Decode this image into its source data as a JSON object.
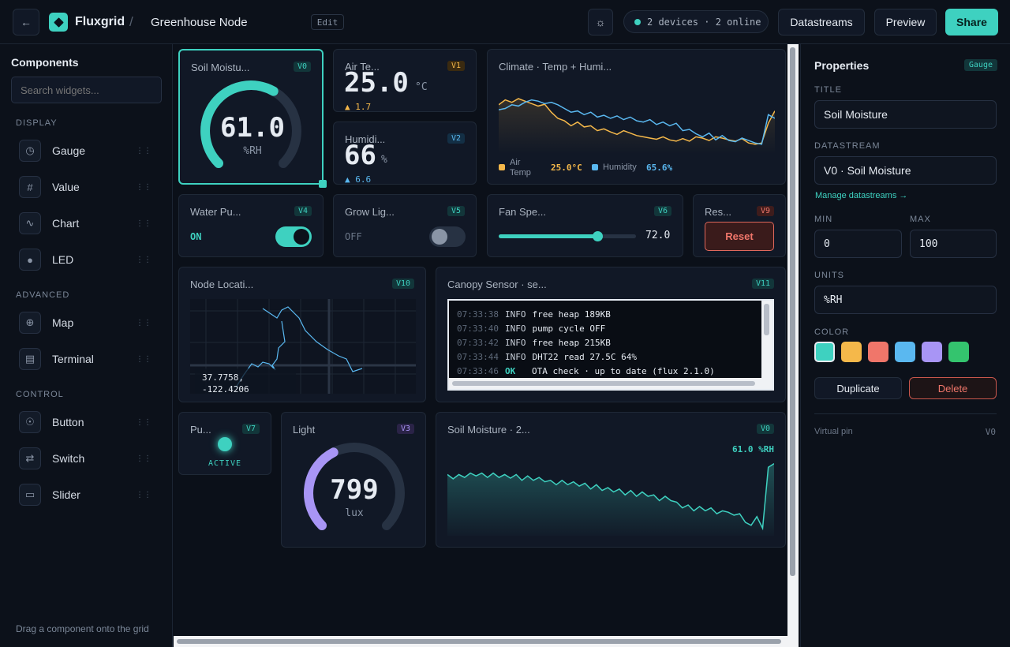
{
  "header": {
    "logo_name": "Fluxgrid",
    "separator": "/",
    "project_title": "Greenhouse Node",
    "edit_label": "Edit",
    "devices_status": "2 devices · 2 online",
    "datastreams_label": "Datastreams",
    "preview_label": "Preview",
    "share_label": "Share"
  },
  "sidebar": {
    "title": "Components",
    "search_placeholder": "Search widgets...",
    "sections": {
      "display": "DISPLAY",
      "advanced": "ADVANCED",
      "control": "CONTROL"
    },
    "items": {
      "gauge": "Gauge",
      "value": "Value",
      "chart": "Chart",
      "led": "LED",
      "map": "Map",
      "terminal": "Terminal",
      "button": "Button",
      "switch": "Switch",
      "slider": "Slider"
    },
    "footer": "Drag a component onto the grid"
  },
  "widgets": {
    "soil_gauge": {
      "title": "Soil Moistu...",
      "pin": "V0",
      "value": "61.0",
      "unit": "%RH",
      "fraction": 0.61
    },
    "air_temp": {
      "title": "Air Te...",
      "pin": "V1",
      "value": "25.0",
      "unit": "°C",
      "delta": "▲ 1.7"
    },
    "humidity": {
      "title": "Humidi...",
      "pin": "V2",
      "value": "66",
      "unit": "%",
      "delta": "▲ 6.6"
    },
    "climate": {
      "title": "Climate · Temp + Humi...",
      "legend_temp": "Air Temp",
      "legend_temp_value": "25.0°C",
      "legend_hum": "Humidity",
      "legend_hum_value": "65.6%"
    },
    "water_pump": {
      "title": "Water Pu...",
      "pin": "V4",
      "state": "ON"
    },
    "grow_light": {
      "title": "Grow Lig...",
      "pin": "V5",
      "state": "OFF"
    },
    "fan_speed": {
      "title": "Fan Spe...",
      "pin": "V6",
      "value": "72.0",
      "fraction": 0.72
    },
    "reset": {
      "title": "Res...",
      "pin": "V9",
      "button": "Reset"
    },
    "map": {
      "title": "Node Locati...",
      "pin": "V10",
      "coord_lat": "37.7758,",
      "coord_lon": "-122.4206"
    },
    "terminal": {
      "title": "Canopy Sensor · se...",
      "pin": "V11",
      "lines": [
        {
          "time": "07:33:38",
          "level": "INFO",
          "msg": "free heap 189KB"
        },
        {
          "time": "07:33:40",
          "level": "INFO",
          "msg": "pump cycle OFF"
        },
        {
          "time": "07:33:42",
          "level": "INFO",
          "msg": "free heap 215KB"
        },
        {
          "time": "07:33:44",
          "level": "INFO",
          "msg": "DHT22 read 27.5C 64%"
        },
        {
          "time": "07:33:46",
          "level": "OK",
          "msg": "OTA check · up to date (flux 2.1.0)"
        }
      ]
    },
    "pump_led": {
      "title": "Pu...",
      "pin": "V7",
      "state": "ACTIVE"
    },
    "light_gauge": {
      "title": "Light",
      "pin": "V3",
      "value": "799",
      "unit": "lux",
      "fraction": 0.4
    },
    "soil_chart": {
      "title": "Soil Moisture · 2...",
      "pin": "V0",
      "current": "61.0 %RH"
    }
  },
  "properties": {
    "title": "Properties",
    "badge": "Gauge",
    "title_label": "TITLE",
    "title_value": "Soil Moisture",
    "datastream_label": "DATASTREAM",
    "datastream_value": "V0 · Soil Moisture",
    "manage_link": "Manage datastreams →",
    "min_label": "MIN",
    "min_value": "0",
    "max_label": "MAX",
    "max_value": "100",
    "units_label": "UNITS",
    "units_value": "%RH",
    "color_label": "COLOR",
    "colors": [
      "#3ed1c0",
      "#f5b84a",
      "#f0766a",
      "#5ab8f0",
      "#a895f5",
      "#34c46e"
    ],
    "duplicate_label": "Duplicate",
    "delete_label": "Delete",
    "virtual_pin_label": "Virtual pin",
    "virtual_pin_value": "V0"
  },
  "chart_data": [
    {
      "type": "line",
      "title": "Climate · Temp + Humi...",
      "series": [
        {
          "name": "Air Temp",
          "values": [
            0.72,
            0.8,
            0.76,
            0.82,
            0.78,
            0.74,
            0.7,
            0.73,
            0.6,
            0.5,
            0.46,
            0.38,
            0.44,
            0.36,
            0.38,
            0.3,
            0.33,
            0.28,
            0.24,
            0.3,
            0.26,
            0.22,
            0.2,
            0.18,
            0.16,
            0.2,
            0.15,
            0.13,
            0.17,
            0.13,
            0.2,
            0.18,
            0.14,
            0.2,
            0.18,
            0.15,
            0.13,
            0.17,
            0.1,
            0.08,
            0.1,
            0.42,
            0.62
          ]
        },
        {
          "name": "Humidity",
          "values": [
            0.64,
            0.66,
            0.72,
            0.7,
            0.76,
            0.8,
            0.78,
            0.74,
            0.76,
            0.72,
            0.66,
            0.6,
            0.62,
            0.56,
            0.6,
            0.52,
            0.55,
            0.5,
            0.54,
            0.48,
            0.52,
            0.46,
            0.44,
            0.48,
            0.4,
            0.44,
            0.38,
            0.42,
            0.3,
            0.32,
            0.25,
            0.2,
            0.26,
            0.15,
            0.22,
            0.14,
            0.12,
            0.18,
            0.14,
            0.1,
            0.08,
            0.56,
            0.5
          ]
        }
      ]
    },
    {
      "type": "area",
      "title": "Soil Moisture · 2...",
      "series": [
        {
          "name": "Soil Moisture",
          "values": [
            0.8,
            0.74,
            0.8,
            0.76,
            0.82,
            0.78,
            0.82,
            0.76,
            0.82,
            0.76,
            0.8,
            0.75,
            0.8,
            0.72,
            0.78,
            0.72,
            0.76,
            0.7,
            0.72,
            0.66,
            0.72,
            0.66,
            0.7,
            0.64,
            0.68,
            0.6,
            0.66,
            0.58,
            0.62,
            0.56,
            0.6,
            0.52,
            0.58,
            0.5,
            0.56,
            0.5,
            0.52,
            0.44,
            0.5,
            0.44,
            0.42,
            0.34,
            0.38,
            0.3,
            0.36,
            0.3,
            0.34,
            0.26,
            0.3,
            0.28,
            0.24,
            0.26,
            0.14,
            0.1,
            0.22,
            0.06,
            0.9,
            0.95
          ]
        }
      ]
    }
  ]
}
